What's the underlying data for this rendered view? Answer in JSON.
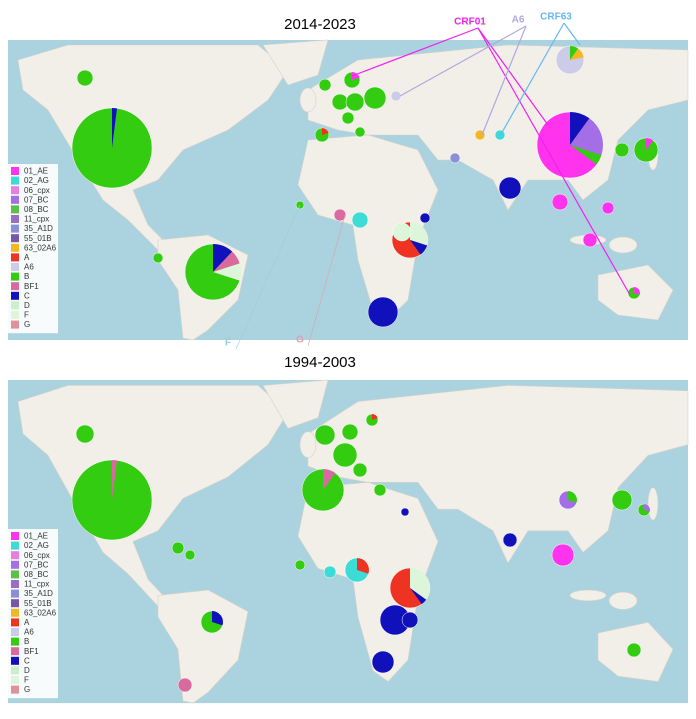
{
  "maps": [
    {
      "title": "2014-2023"
    },
    {
      "title": "1994-2003"
    }
  ],
  "legend": [
    {
      "name": "01_AE",
      "color": "#ff33ee"
    },
    {
      "name": "02_AG",
      "color": "#3ddbd6"
    },
    {
      "name": "06_cpx",
      "color": "#e77ee0"
    },
    {
      "name": "07_BC",
      "color": "#a46ee6"
    },
    {
      "name": "08_BC",
      "color": "#5cbf4a"
    },
    {
      "name": "11_cpx",
      "color": "#9b6ec4"
    },
    {
      "name": "35_A1D",
      "color": "#8a8fd6"
    },
    {
      "name": "55_01B",
      "color": "#7a56a8"
    },
    {
      "name": "63_02A6",
      "color": "#f2b824"
    },
    {
      "name": "A",
      "color": "#ee3322"
    },
    {
      "name": "A6",
      "color": "#cccce8"
    },
    {
      "name": "B",
      "color": "#33cc11"
    },
    {
      "name": "BF1",
      "color": "#d96aa0"
    },
    {
      "name": "C",
      "color": "#1111bb"
    },
    {
      "name": "D",
      "color": "#cdeecd"
    },
    {
      "name": "F",
      "color": "#ddf5d8"
    },
    {
      "name": "G",
      "color": "#e0909a"
    }
  ],
  "annotations": [
    {
      "text": "CRF01",
      "color": "#ee22ee"
    },
    {
      "text": "A6",
      "color": "#b0a8e0"
    },
    {
      "text": "CRF63",
      "color": "#66b8ee"
    },
    {
      "text": "F",
      "color": "#99ccdd"
    },
    {
      "text": "G",
      "color": "#e0a0b0"
    }
  ]
}
